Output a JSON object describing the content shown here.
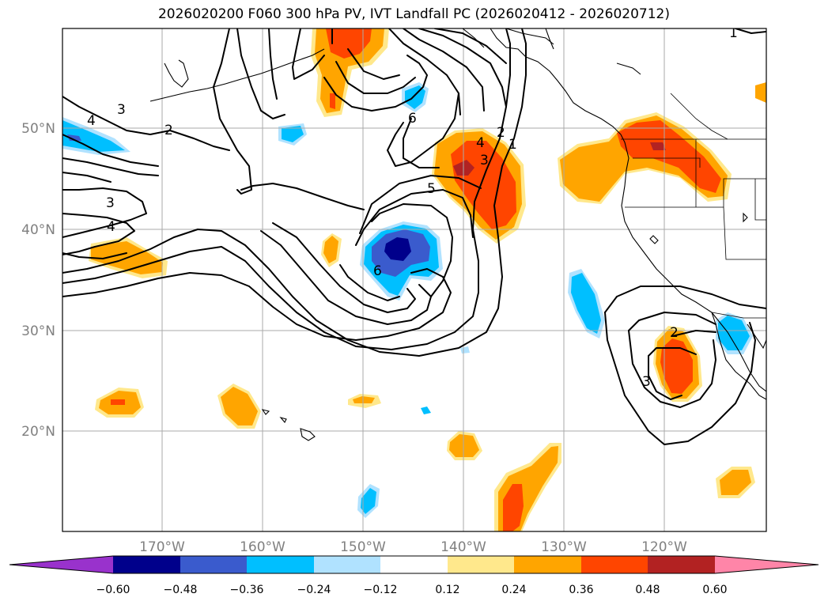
{
  "title": "2026020200 F060 300 hPa PV, IVT Landfall PC (2026020412 - 2026020712)",
  "map": {
    "lat_labels": [
      "50°N",
      "40°N",
      "30°N",
      "20°N"
    ],
    "lon_labels": [
      "170°W",
      "160°W",
      "150°W",
      "140°W",
      "130°W",
      "120°W"
    ],
    "contour_labels": [
      "4",
      "3",
      "2",
      "3",
      "4",
      "6",
      "5",
      "4",
      "3",
      "2",
      "1",
      "6",
      "2",
      "3",
      "1"
    ]
  },
  "colorbar": {
    "ticks": [
      "−0.60",
      "−0.48",
      "−0.36",
      "−0.24",
      "−0.12",
      "0.12",
      "0.24",
      "0.36",
      "0.48",
      "0.60"
    ],
    "colors": [
      "#9932cc",
      "#00008b",
      "#3a5bcd",
      "#00bfff",
      "#b0e2ff",
      "#ffffff",
      "#ffe88c",
      "#ffa500",
      "#ff4500",
      "#b22222",
      "#ff85a8"
    ]
  }
}
